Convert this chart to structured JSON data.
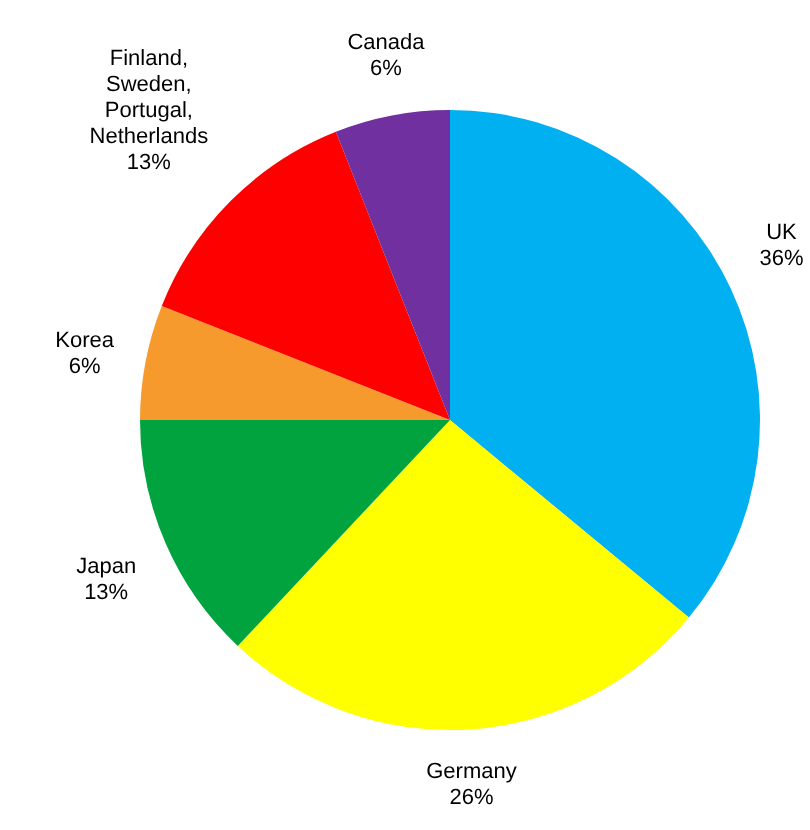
{
  "chart_data": {
    "type": "pie",
    "categories": [
      "UK",
      "Germany",
      "Japan",
      "Korea",
      "Finland, Sweden, Portugal, Netherlands",
      "Canada"
    ],
    "values": [
      36,
      26,
      13,
      6,
      13,
      6
    ],
    "value_labels": [
      "36%",
      "26%",
      "13%",
      "6%",
      "13%",
      "6%"
    ],
    "colors": [
      "#00b0f0",
      "#ffff00",
      "#00a33e",
      "#f79a2e",
      "#ff0000",
      "#7030a0"
    ],
    "legend": false
  }
}
